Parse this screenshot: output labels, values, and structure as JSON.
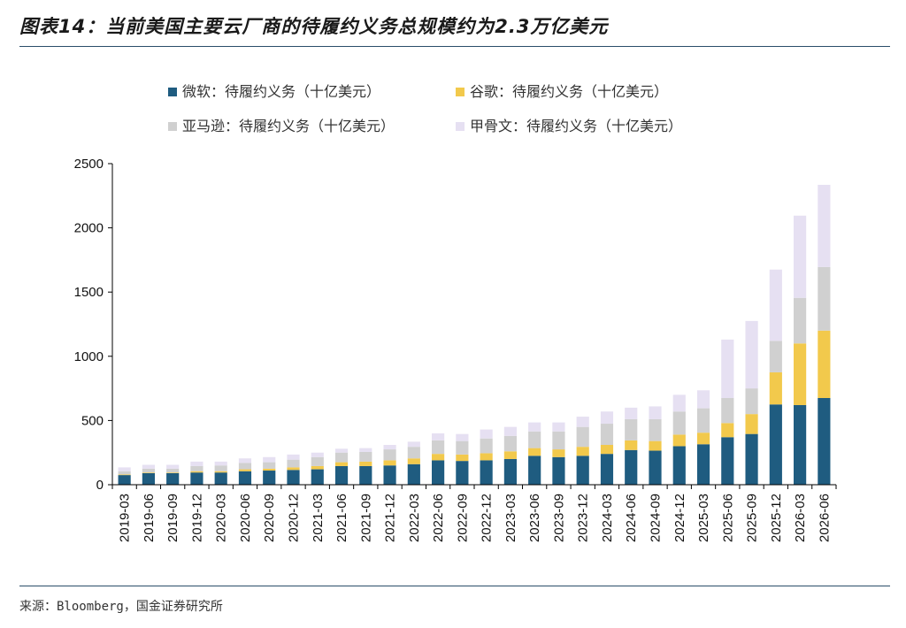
{
  "figure": {
    "title": "图表14：当前美国主要云厂商的待履约义务总规模约为2.3万亿美元",
    "source": "来源：Bloomberg，国金证券研究所"
  },
  "chart_data": {
    "type": "bar",
    "stacked": true,
    "categories": [
      "2019-03",
      "2019-06",
      "2019-09",
      "2019-12",
      "2020-03",
      "2020-06",
      "2020-09",
      "2020-12",
      "2021-03",
      "2021-06",
      "2021-09",
      "2021-12",
      "2022-03",
      "2022-06",
      "2022-09",
      "2022-12",
      "2023-03",
      "2023-06",
      "2023-09",
      "2023-12",
      "2024-03",
      "2024-06",
      "2024-09",
      "2024-12",
      "2025-03",
      "2025-06",
      "2025-09",
      "2025-12",
      "2026-03",
      "2026-06"
    ],
    "series": [
      {
        "name": "微软：待履约义务（十亿美元）",
        "color": "#1f5c80",
        "values": [
          75,
          90,
          90,
          95,
          95,
          105,
          110,
          115,
          120,
          145,
          145,
          150,
          160,
          190,
          185,
          190,
          200,
          225,
          215,
          225,
          240,
          270,
          265,
          300,
          315,
          370,
          395,
          625,
          620,
          675
        ]
      },
      {
        "name": "谷歌：待履约义务（十亿美元）",
        "color": "#f2c94c",
        "values": [
          5,
          5,
          5,
          10,
          10,
          15,
          15,
          20,
          25,
          30,
          35,
          40,
          45,
          50,
          50,
          55,
          60,
          60,
          60,
          70,
          70,
          75,
          75,
          90,
          90,
          110,
          155,
          250,
          480,
          525
        ]
      },
      {
        "name": "亚马逊：待履约义务（十亿美元）",
        "color": "#d0d0d0",
        "values": [
          25,
          30,
          30,
          40,
          45,
          50,
          50,
          60,
          70,
          75,
          75,
          85,
          90,
          105,
          105,
          115,
          120,
          130,
          140,
          155,
          165,
          165,
          170,
          180,
          190,
          195,
          200,
          245,
          355,
          495
        ]
      },
      {
        "name": "甲骨文：待履约义务（十亿美元）",
        "color": "#e6e0f2",
        "values": [
          30,
          30,
          30,
          35,
          30,
          35,
          40,
          40,
          35,
          30,
          30,
          35,
          40,
          55,
          55,
          70,
          70,
          70,
          70,
          80,
          95,
          90,
          100,
          130,
          140,
          455,
          525,
          555,
          640,
          640
        ]
      }
    ],
    "ylim": [
      0,
      2500
    ],
    "yticks": [
      0,
      500,
      1000,
      1500,
      2000,
      2500
    ],
    "legend_position": "top",
    "grid": false
  }
}
